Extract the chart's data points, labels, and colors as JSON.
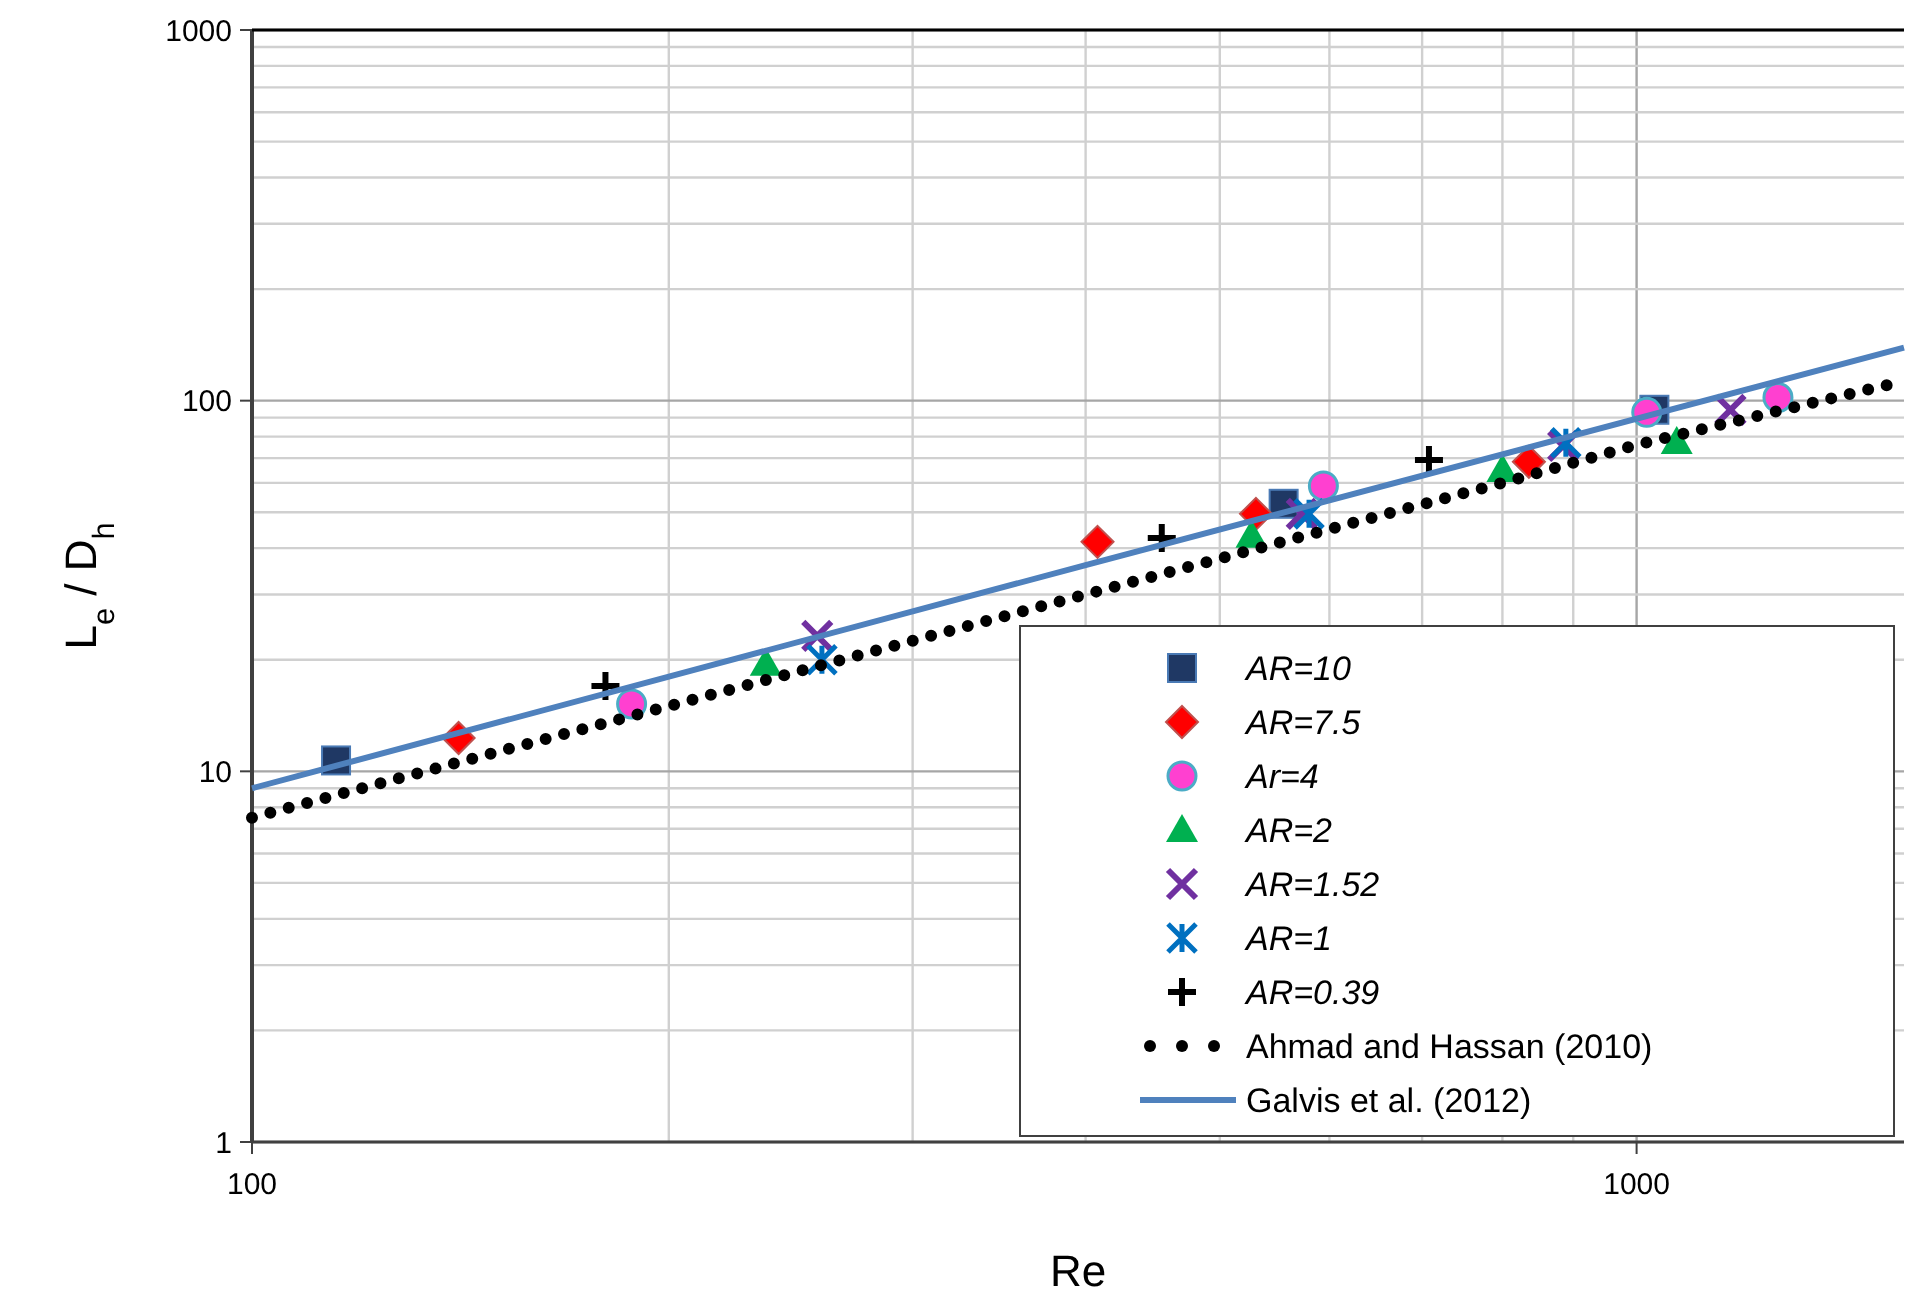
{
  "chart_data": {
    "type": "scatter",
    "xlabel": "Re",
    "ylabel": "L$_{e}$ / D$_{h}$",
    "log": "xy",
    "grid": true,
    "legend": "bottom right",
    "xlim": [
      100,
      1560
    ],
    "xticks": [
      100,
      1000
    ],
    "ylim": [
      1,
      1000
    ],
    "yticks": [
      1,
      10,
      100,
      1000
    ],
    "series": [
      {
        "name": "AR=10",
        "color": "#1f3864",
        "marker": "square",
        "x": [
          115,
          556,
          1030
        ],
        "values": [
          10.7,
          52.7,
          94.5
        ]
      },
      {
        "name": "AR=7.5",
        "color": "#ff0000",
        "marker": "diamond",
        "x": [
          141,
          408,
          531,
          836
        ],
        "values": [
          12.3,
          41.6,
          49.5,
          68.4
        ]
      },
      {
        "name": "Ar=4",
        "color": "#ff40d0",
        "marker": "circle",
        "x": [
          188,
          594,
          1017,
          1265
        ],
        "values": [
          15.2,
          58.9,
          93,
          102
        ]
      },
      {
        "name": "AR=2",
        "color": "#00b050",
        "marker": "triangle",
        "x": [
          235,
          527,
          800,
          1069
        ],
        "values": [
          19.5,
          43.2,
          65,
          77.4
        ]
      },
      {
        "name": "AR=1.52",
        "color": "#7030a0",
        "marker": "x",
        "x": [
          256,
          573,
          885,
          1169
        ],
        "values": [
          23.2,
          49.5,
          75.5,
          94.5
        ]
      },
      {
        "name": "AR=1",
        "color": "#0070c0",
        "marker": "cross",
        "x": [
          258,
          580,
          889
        ],
        "values": [
          20,
          49.5,
          77
        ]
      },
      {
        "name": "AR=0.39",
        "color": "#000000",
        "marker": "plus",
        "x": [
          180,
          454,
          708
        ],
        "values": [
          17,
          42.6,
          69.2
        ]
      },
      {
        "name": "Ahmad and Hassan (2010)",
        "type": "line",
        "line_style": "dotted",
        "color": "#000000",
        "x": [
          100,
          200,
          400,
          800,
          1000,
          1560
        ],
        "values": [
          7.5,
          15,
          30,
          60,
          76,
          113
        ]
      },
      {
        "name": "Galvis et al. (2012)",
        "type": "line",
        "line_style": "solid",
        "color": "#4f81bd",
        "x": [
          100,
          400,
          1560
        ],
        "values": [
          9,
          36,
          139
        ]
      }
    ]
  }
}
